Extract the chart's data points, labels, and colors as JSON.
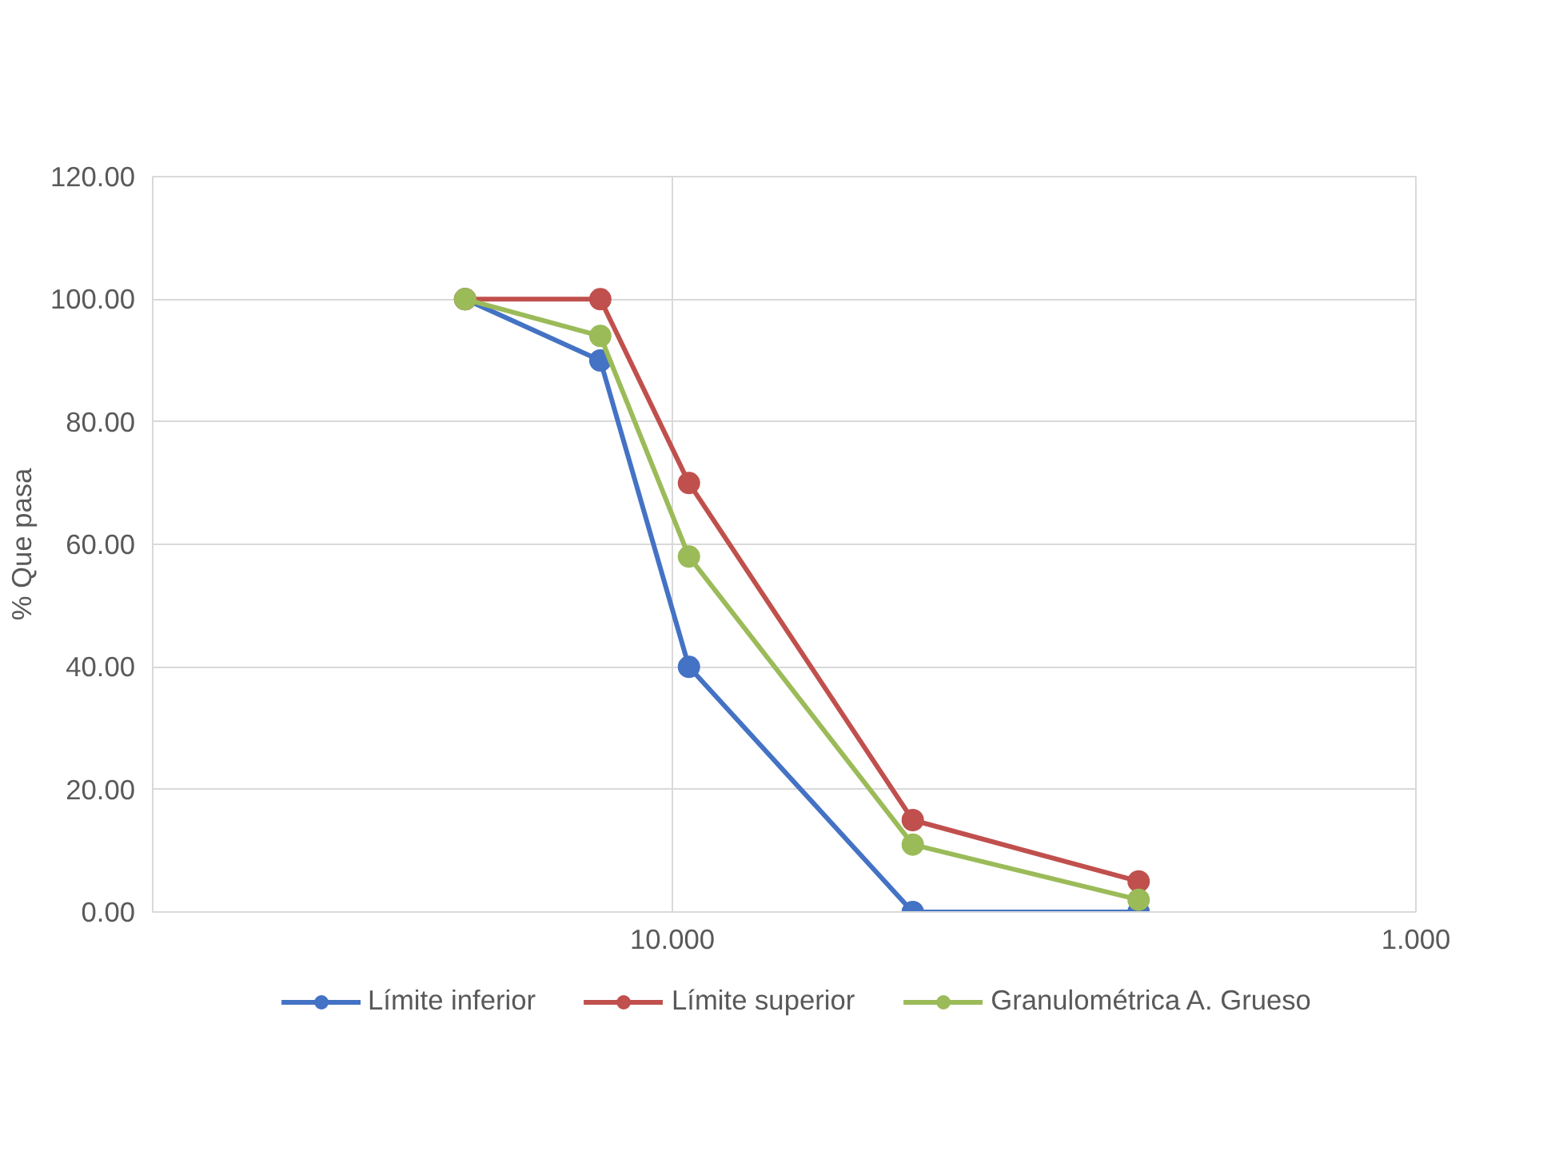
{
  "chart_data": {
    "type": "line",
    "ylabel": "% Que pasa",
    "log": "x",
    "x": [
      19.0,
      12.5,
      9.5,
      4.75,
      2.36
    ],
    "xlim": [
      50,
      1
    ],
    "xticks": [
      {
        "value": 10,
        "label": "10.000"
      },
      {
        "value": 1,
        "label": "1.000"
      }
    ],
    "ylim": [
      0,
      120
    ],
    "yticks": [
      {
        "value": 0,
        "label": "0.00"
      },
      {
        "value": 20,
        "label": "20.00"
      },
      {
        "value": 40,
        "label": "40.00"
      },
      {
        "value": 60,
        "label": "60.00"
      },
      {
        "value": 80,
        "label": "80.00"
      },
      {
        "value": 100,
        "label": "100.00"
      },
      {
        "value": 120,
        "label": "120.00"
      }
    ],
    "series": [
      {
        "name": "Límite inferior",
        "color": "#4472c4",
        "values": [
          100,
          90,
          40,
          0,
          0
        ]
      },
      {
        "name": "Límite superior",
        "color": "#c0504d",
        "values": [
          100,
          100,
          70,
          15,
          5
        ]
      },
      {
        "name": "Granulométrica A. Grueso",
        "color": "#9bbb59",
        "values": [
          100,
          94,
          58,
          11,
          2
        ]
      }
    ],
    "grid": true,
    "legend": "bottom",
    "marker": "circle",
    "line_style": "solid"
  }
}
